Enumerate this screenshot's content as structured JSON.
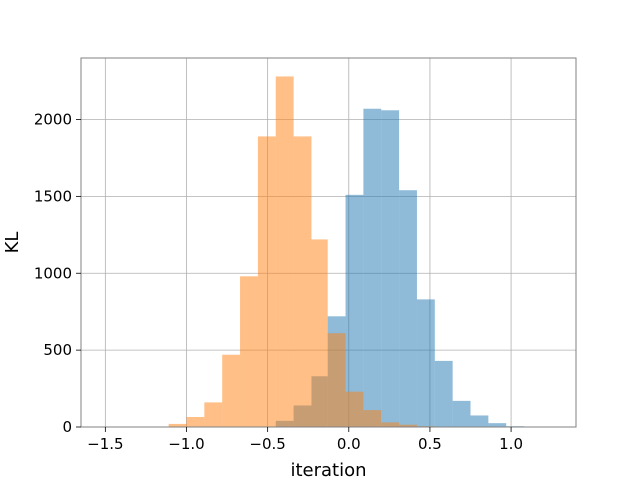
{
  "chart_data": {
    "type": "bar",
    "title": "",
    "xlabel": "iteration",
    "ylabel": "KL",
    "xlim": [
      -1.65,
      1.4
    ],
    "ylim": [
      0,
      2400
    ],
    "grid": true,
    "x_ticks": [
      {
        "value": -1.5,
        "label": "−1.5"
      },
      {
        "value": -1.0,
        "label": "−1.0"
      },
      {
        "value": -0.5,
        "label": "−0.5"
      },
      {
        "value": 0.0,
        "label": "0.0"
      },
      {
        "value": 0.5,
        "label": "0.5"
      },
      {
        "value": 1.0,
        "label": "1.0"
      }
    ],
    "y_ticks": [
      {
        "value": 0,
        "label": "0"
      },
      {
        "value": 500,
        "label": "500"
      },
      {
        "value": 1000,
        "label": "1000"
      },
      {
        "value": 1500,
        "label": "1500"
      },
      {
        "value": 2000,
        "label": "2000"
      }
    ],
    "series": [
      {
        "color": "#1f77b4",
        "opacity": 0.5,
        "bin_edges": [
          -0.56,
          -0.45,
          -0.34,
          -0.23,
          -0.13,
          -0.02,
          0.09,
          0.2,
          0.31,
          0.42,
          0.53,
          0.64,
          0.75,
          0.86,
          0.97,
          1.08
        ],
        "counts": [
          2,
          40,
          140,
          330,
          720,
          1510,
          2070,
          2060,
          1540,
          830,
          430,
          170,
          75,
          25,
          5
        ]
      },
      {
        "color": "#ff7f0e",
        "opacity": 0.5,
        "bin_edges": [
          -1.22,
          -1.11,
          -1.0,
          -0.89,
          -0.78,
          -0.67,
          -0.56,
          -0.45,
          -0.34,
          -0.23,
          -0.13,
          -0.02,
          0.09,
          0.2,
          0.31,
          0.42,
          0.53
        ],
        "counts": [
          2,
          20,
          65,
          160,
          470,
          980,
          1890,
          2280,
          1890,
          1220,
          610,
          230,
          110,
          30,
          15,
          5
        ]
      }
    ]
  }
}
